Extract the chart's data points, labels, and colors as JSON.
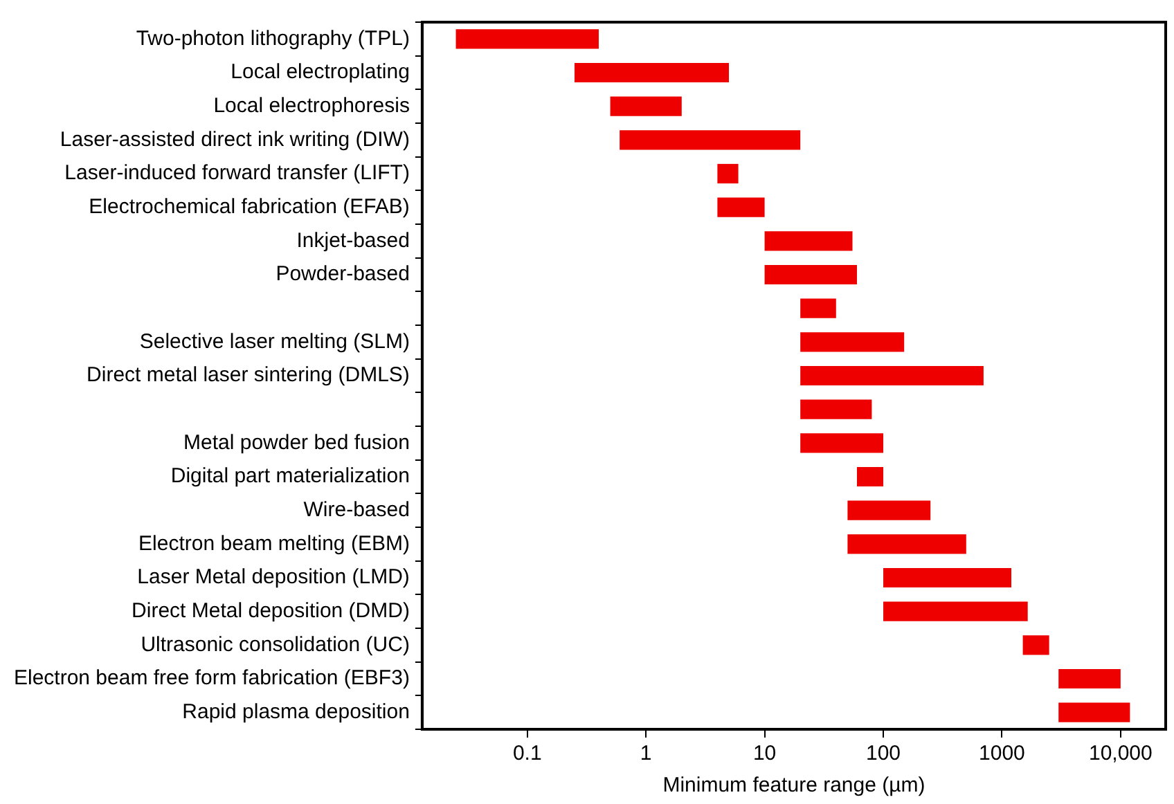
{
  "chart_data": {
    "type": "bar",
    "orientation": "horizontal",
    "xlabel": "Minimum feature range (µm)",
    "log": "x",
    "categories": [
      "Two-photon lithography (TPL)",
      "Local electroplating",
      "Local electrophoresis",
      "Laser-assisted direct ink writing (DIW)",
      "Laser-induced forward transfer (LIFT)",
      "Electrochemical fabrication (EFAB)",
      "Inkjet-based",
      "Powder-based",
      null,
      "Selective laser melting (SLM)",
      "Direct metal laser sintering (DMLS)",
      null,
      "Metal powder bed fusion",
      "Digital part materialization",
      "Wire-based",
      "Electron beam melting (EBM)",
      "Laser Metal deposition (LMD)",
      "Direct Metal deposition (DMD)",
      "Ultrasonic consolidation (UC)",
      "Electron beam free form fabrication (EBF3)",
      "Rapid plasma deposition"
    ],
    "base": [
      0.025,
      0.25,
      0.5,
      0.6,
      4,
      4,
      10,
      10,
      20,
      20,
      20,
      20,
      20,
      60,
      50,
      50,
      100,
      100,
      1500,
      3000,
      3000
    ],
    "values": [
      0.375,
      4.75,
      1.5,
      19.4,
      2,
      6,
      45,
      50,
      20,
      130,
      680,
      60,
      80,
      40,
      200,
      450,
      1100,
      1550,
      1000,
      7000,
      9000
    ],
    "color": "#ee0000",
    "xlim": [
      0.013,
      24000
    ],
    "xticks": [
      0.1,
      1,
      10,
      100,
      1000,
      {
        "value": 10000,
        "label": "10,000"
      }
    ],
    "grid": false,
    "legend": false
  }
}
